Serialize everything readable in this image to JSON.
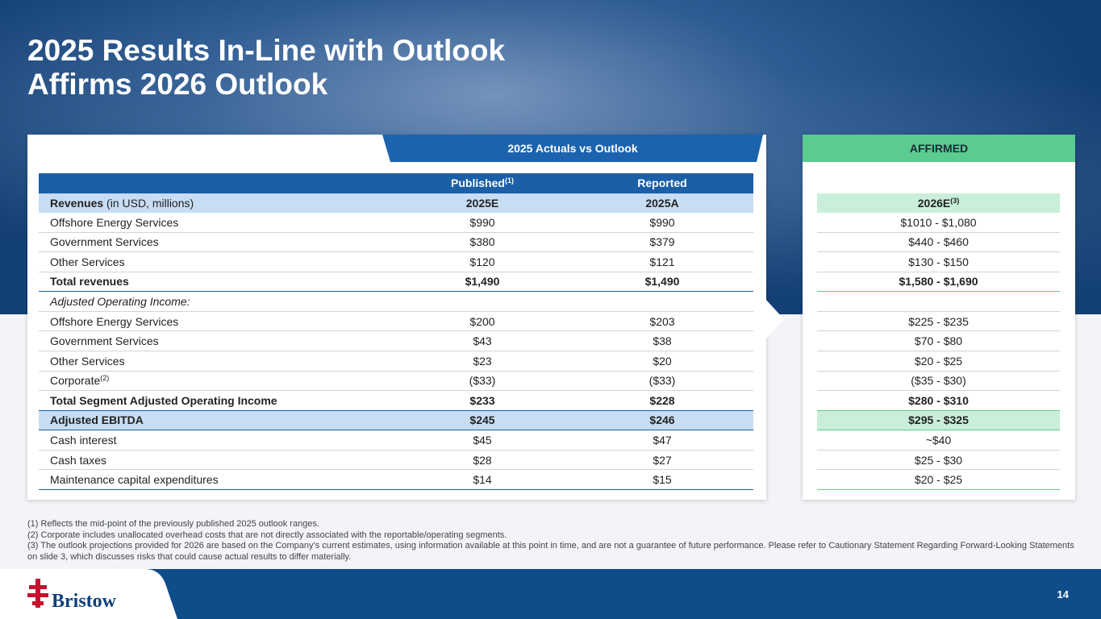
{
  "title_lines": [
    "2025 Results In-Line with Outlook",
    "Affirms 2026 Outlook"
  ],
  "left_tab": "2025 Actuals vs Outlook",
  "right_tab": "AFFIRMED",
  "table": {
    "header": {
      "published": "Published",
      "published_note": "(1)",
      "reported": "Reported"
    },
    "subheader": {
      "label": "Revenues",
      "label_suffix": " (in USD, millions)",
      "published": "2025E",
      "reported": "2025A",
      "outlook": "2026E",
      "outlook_note": "(3)"
    },
    "rows": [
      {
        "label": "Offshore Energy Services",
        "published": "$990",
        "reported": "$990",
        "outlook": "$1010 - $1,080"
      },
      {
        "label": "Government Services",
        "published": "$380",
        "reported": "$379",
        "outlook": "$440 - $460"
      },
      {
        "label": "Other Services",
        "published": "$120",
        "reported": "$121",
        "outlook": "$130 - $150"
      },
      {
        "label": "Total revenues",
        "published": "$1,490",
        "reported": "$1,490",
        "outlook": "$1,580 - $1,690"
      },
      {
        "label": "Adjusted Operating Income:"
      },
      {
        "label": "Offshore Energy Services",
        "published": "$200",
        "reported": "$203",
        "outlook": "$225 - $235"
      },
      {
        "label": "Government Services",
        "published": "$43",
        "reported": "$38",
        "outlook": "$70 - $80"
      },
      {
        "label": "Other Services",
        "published": "$23",
        "reported": "$20",
        "outlook": "$20 - $25"
      },
      {
        "label": "Corporate",
        "label_note": "(2)",
        "published": "($33)",
        "reported": "($33)",
        "outlook": "($35 - $30)"
      },
      {
        "label": "Total Segment Adjusted Operating Income",
        "published": "$233",
        "reported": "$228",
        "outlook": "$280 - $310"
      },
      {
        "label": "Adjusted EBITDA",
        "published": "$245",
        "reported": "$246",
        "outlook": "$295 - $325"
      },
      {
        "label": "Cash interest",
        "published": "$45",
        "reported": "$47",
        "outlook": "~$40"
      },
      {
        "label": "Cash taxes",
        "published": "$28",
        "reported": "$27",
        "outlook": "$25 - $30"
      },
      {
        "label": "Maintenance capital expenditures",
        "published": "$14",
        "reported": "$15",
        "outlook": "$20 - $25"
      }
    ]
  },
  "footnotes": [
    "(1) Reflects the mid-point of the previously published 2025 outlook ranges.",
    "(2) Corporate includes unallocated overhead costs that are not directly associated with the reportable/operating segments.",
    "(3) The outlook projections provided for 2026 are based on the Company’s current estimates, using information available at this point in time, and are not a guarantee of future performance. Please refer to Cautionary Statement Regarding Forward-Looking Statements on slide 3, which discusses risks that could cause actual results to differ materially."
  ],
  "logo": "Bristow",
  "page_number": "14"
}
